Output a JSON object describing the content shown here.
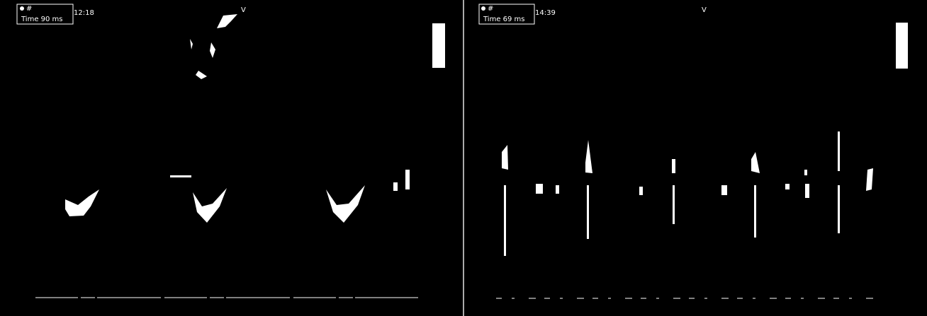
{
  "panels": [
    {
      "mark": "#",
      "time": "Time 90 ms",
      "clock": "12:18",
      "marker": "V"
    },
    {
      "mark": "#",
      "time": "Time 69 ms",
      "clock": "14:39",
      "marker": "V"
    }
  ]
}
